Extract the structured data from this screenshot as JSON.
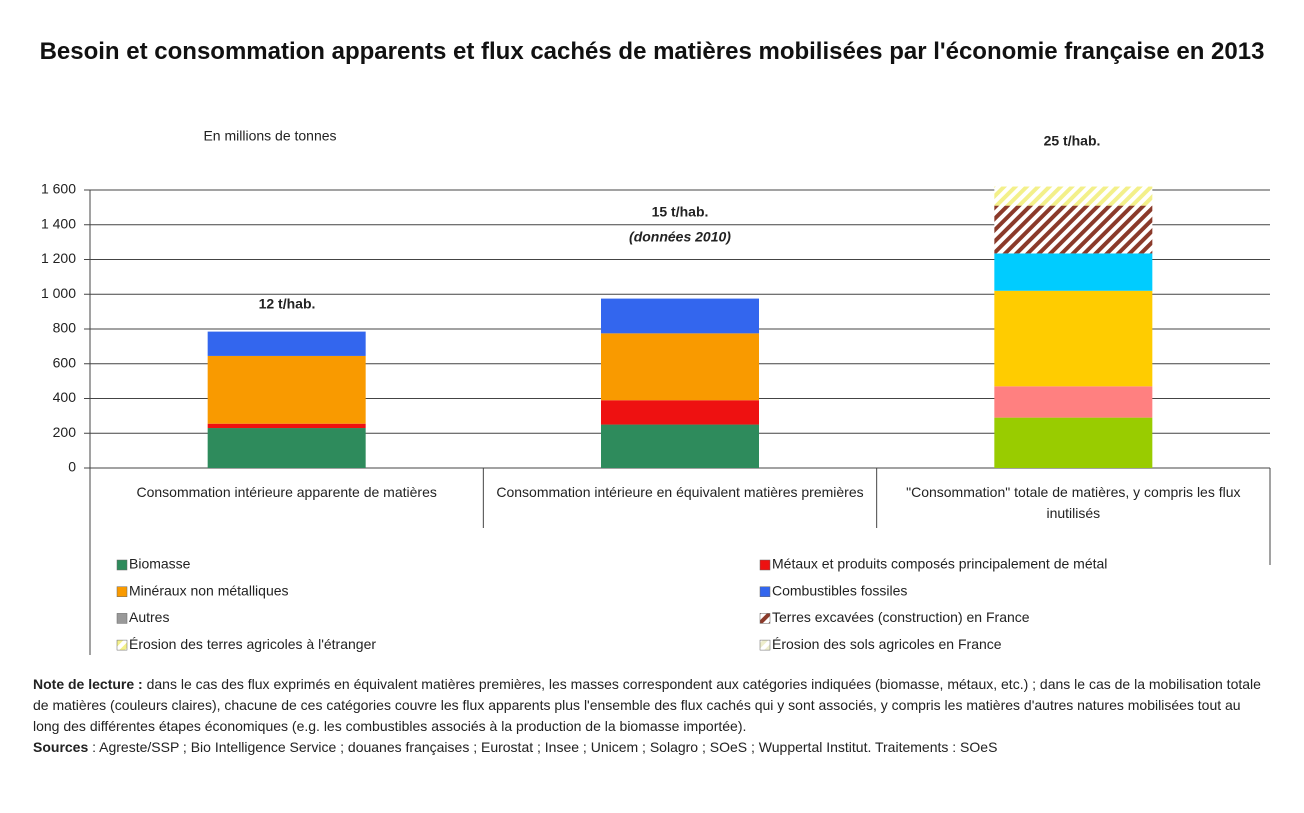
{
  "chart_data": {
    "type": "stacked_bar",
    "title": "Besoin et consommation apparents et flux cachés de matières mobilisées par l'économie française en 2013",
    "y_label": "En millions de tonnes",
    "categories": [
      "Consommation intérieure apparente de matières",
      "Consommation intérieure en équivalent matières premières",
      "\"Consommation\" totale de matières, y compris les flux inutilisés"
    ],
    "ylim": [
      0,
      1600
    ],
    "yticks": [
      0,
      200,
      400,
      600,
      800,
      {
        "value": 1000,
        "label": "1 000"
      },
      {
        "value": 1200,
        "label": "1 200"
      },
      {
        "value": 1400,
        "label": "1 400"
      },
      {
        "value": 1600,
        "label": "1 600"
      }
    ],
    "grid": true,
    "series": [
      {
        "name": "Biomasse",
        "color": "#2e8b5c",
        "colors": [
          "#2e8b5c",
          "#2e8b5c",
          "#99cc00"
        ],
        "values": [
          230,
          250,
          290
        ]
      },
      {
        "name": "Métaux et produits composés principalement de métal",
        "color": "#ee1111",
        "colors": [
          "#ee1111",
          "#ee1111",
          "#ff8080"
        ],
        "values": [
          25,
          140,
          180
        ]
      },
      {
        "name": "Minéraux non métalliques",
        "color": "#f99a00",
        "colors": [
          "#f99a00",
          "#f99a00",
          "#ffcc00"
        ],
        "values": [
          390,
          385,
          550
        ]
      },
      {
        "name": "Combustibles fossiles",
        "color": "#3366ee",
        "colors": [
          "#3366ee",
          "#3366ee",
          "#00ccff"
        ],
        "values": [
          140,
          200,
          215
        ]
      },
      {
        "name": "Autres",
        "color": "#999999",
        "colors": [
          "#999999",
          "#999999",
          "#cccccc"
        ],
        "values": [
          null,
          null,
          null
        ]
      },
      {
        "name": "Terres excavées (construction) en France",
        "color": "#8b3a2a",
        "colors": [
          "#8b3a2a",
          "#8b3a2a",
          "#8b3a2a"
        ],
        "pattern": "hatch",
        "values": [
          null,
          null,
          275
        ]
      },
      {
        "name": "Érosion des terres agricoles à l'étranger",
        "color": "#f3f08a",
        "colors": [
          "#f3f08a",
          "#f3f08a",
          "#f3f08a"
        ],
        "pattern": "hatch",
        "values": [
          null,
          null,
          110
        ]
      },
      {
        "name": "Érosion des sols agricoles en France",
        "color": "#eeeecc",
        "colors": [
          "#eeeecc",
          "#eeeecc",
          "#eeeecc"
        ],
        "pattern": "hatch",
        "values": [
          null,
          null,
          null
        ]
      }
    ],
    "annotations": [
      "12 t/hab.",
      "15 t/hab.",
      "(données 2010)",
      "25 t/hab."
    ],
    "note_label": "Note de lecture :",
    "note_text": "dans le cas des flux exprimés en équivalent matières premières, les masses correspondent aux catégories indiquées (biomasse, métaux, etc.) ; dans le cas de la mobilisation totale de matières (couleurs claires), chacune de ces catégories couvre les flux apparents plus l'ensemble des flux cachés qui y sont associés, y compris les matières d'autres natures mobilisées tout au long des différentes étapes économiques (e.g. les combustibles associés à la production de la biomasse importée).",
    "sources_label": "Sources",
    "sources_text": ": Agreste/SSP ; Bio Intelligence Service ; douanes françaises ; Eurostat ; Insee ; Unicem ; Solagro ; SOeS ; Wuppertal Institut. Traitements : SOeS"
  }
}
